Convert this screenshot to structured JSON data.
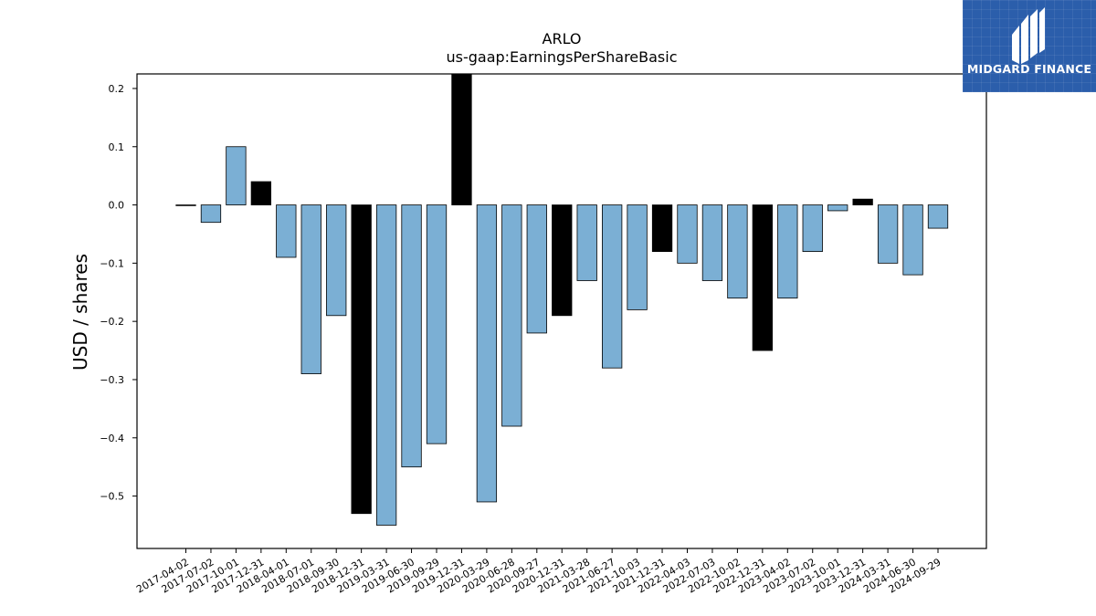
{
  "logo": {
    "text": "MIDGARD FINANCE",
    "icon": "midgard-logo-icon",
    "background": "#2b5eab"
  },
  "chart_data": {
    "type": "bar",
    "title": "ARLO",
    "subtitle": "us-gaap:EarningsPerShareBasic",
    "ylabel": "USD / shares",
    "xlabel": "",
    "ylim": [
      -0.59,
      0.225
    ],
    "yticks": [
      0.2,
      0.1,
      0.0,
      -0.1,
      -0.2,
      -0.3,
      -0.4,
      -0.5
    ],
    "ytick_labels": [
      "0.2",
      "0.1",
      "0.0",
      "−0.1",
      "−0.2",
      "−0.3",
      "−0.4",
      "−0.5"
    ],
    "grid": false,
    "colors": {
      "quarter": "#7bafd4",
      "year_end": "#000000",
      "edge": "#000000"
    },
    "categories": [
      "2017-04-02",
      "2017-07-02",
      "2017-10-01",
      "2017-12-31",
      "2018-04-01",
      "2018-07-01",
      "2018-09-30",
      "2018-12-31",
      "2019-03-31",
      "2019-06-30",
      "2019-09-29",
      "2019-12-31",
      "2020-03-29",
      "2020-06-28",
      "2020-09-27",
      "2020-12-31",
      "2021-03-28",
      "2021-06-27",
      "2021-10-03",
      "2021-12-31",
      "2022-04-03",
      "2022-07-03",
      "2022-10-02",
      "2022-12-31",
      "2023-04-02",
      "2023-07-02",
      "2023-10-01",
      "2023-12-31",
      "2024-03-31",
      "2024-06-30",
      "2024-09-29"
    ],
    "values": [
      0.0,
      -0.03,
      0.1,
      0.04,
      -0.09,
      -0.29,
      -0.19,
      -0.53,
      -0.55,
      -0.45,
      -0.41,
      0.225,
      -0.51,
      -0.38,
      -0.22,
      -0.19,
      -0.13,
      -0.28,
      -0.18,
      -0.08,
      -0.1,
      -0.13,
      -0.16,
      -0.25,
      -0.16,
      -0.08,
      -0.01,
      0.01,
      -0.1,
      -0.12,
      -0.04
    ],
    "year_end": [
      false,
      false,
      false,
      true,
      false,
      false,
      false,
      true,
      false,
      false,
      false,
      true,
      false,
      false,
      false,
      true,
      false,
      false,
      false,
      true,
      false,
      false,
      false,
      true,
      false,
      false,
      false,
      true,
      false,
      false,
      false
    ]
  }
}
